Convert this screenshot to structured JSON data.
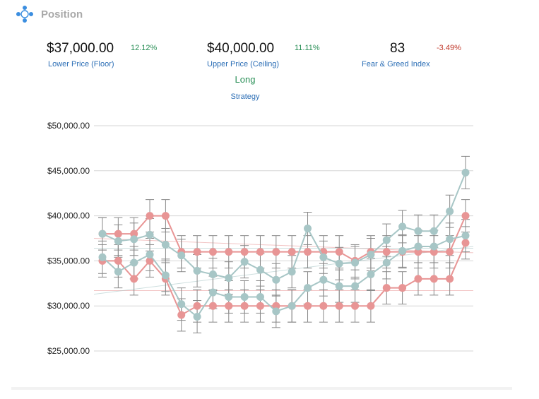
{
  "header": {
    "title": "Position",
    "icon": "crosshair-icon"
  },
  "stats": {
    "floor": {
      "value": "$37,000.00",
      "change": "12.12%",
      "label": "Lower Price (Floor)"
    },
    "ceiling": {
      "value": "$40,000.00",
      "change": "11.11%",
      "label": "Upper Price (Ceiling)"
    },
    "fear": {
      "value": "83",
      "change": "-3.49%",
      "label": "Fear & Greed Index"
    }
  },
  "strategy": {
    "value": "Long",
    "label": "Strategy"
  },
  "colors": {
    "red": "#e89595",
    "teal": "#a7c6c6",
    "grid": "#d6d6d6",
    "error": "#888888",
    "positive": "#2a8f57",
    "negative": "#c0392b",
    "label_blue": "#2d6fb6"
  },
  "chart_data": {
    "type": "line",
    "ylim": [
      25000,
      50000
    ],
    "yticks": [
      25000,
      30000,
      35000,
      40000,
      45000,
      50000
    ],
    "ytick_labels": [
      "$25,000.00",
      "$30,000.00",
      "$35,000.00",
      "$40,000.00",
      "$45,000.00",
      "$50,000.00"
    ],
    "x": [
      0,
      1,
      2,
      3,
      4,
      5,
      6,
      7,
      8,
      9,
      10,
      11,
      12,
      13,
      14,
      15,
      16,
      17,
      18,
      19,
      20,
      21,
      22,
      23
    ],
    "series": [
      {
        "color": "#e89595",
        "error": 1800,
        "values": [
          38000,
          38000,
          38000,
          40000,
          40000,
          36000,
          36000,
          36000,
          36000,
          36000,
          36000,
          36000,
          36000,
          36000,
          36000,
          36000,
          35000,
          36000,
          36000,
          36000,
          36000,
          36000,
          36000,
          40000
        ]
      },
      {
        "color": "#e89595",
        "error": 1800,
        "values": [
          35000,
          35000,
          33000,
          35000,
          33000,
          29000,
          30000,
          30000,
          30000,
          30000,
          30000,
          30000,
          30000,
          30000,
          30000,
          30000,
          30000,
          30000,
          32000,
          32000,
          33000,
          33000,
          33000,
          37000
        ]
      },
      {
        "color": "#a7c6c6",
        "error": 1800,
        "values": [
          38000,
          37200,
          37400,
          37900,
          36800,
          35600,
          33900,
          33500,
          33100,
          34900,
          34000,
          32900,
          33800,
          38600,
          35400,
          34700,
          34800,
          35700,
          37300,
          38800,
          38300,
          38300,
          40500,
          44800
        ]
      },
      {
        "color": "#a7c6c6",
        "error": 1800,
        "values": [
          35400,
          33800,
          34800,
          35700,
          33400,
          30200,
          28800,
          31500,
          31000,
          31000,
          31000,
          29400,
          30000,
          32000,
          32900,
          32200,
          32200,
          33500,
          34800,
          36100,
          36600,
          36600,
          37400,
          37800
        ]
      }
    ],
    "trendlines": [
      {
        "color": "#e89595",
        "from": 37500,
        "to": 35900
      },
      {
        "color": "#e89595",
        "from": 31700,
        "to": 31700
      },
      {
        "color": "#a7c6c6",
        "from": 36400,
        "to": 36400
      },
      {
        "color": "#a7c6c6",
        "from": 31300,
        "to": 36600
      }
    ]
  }
}
